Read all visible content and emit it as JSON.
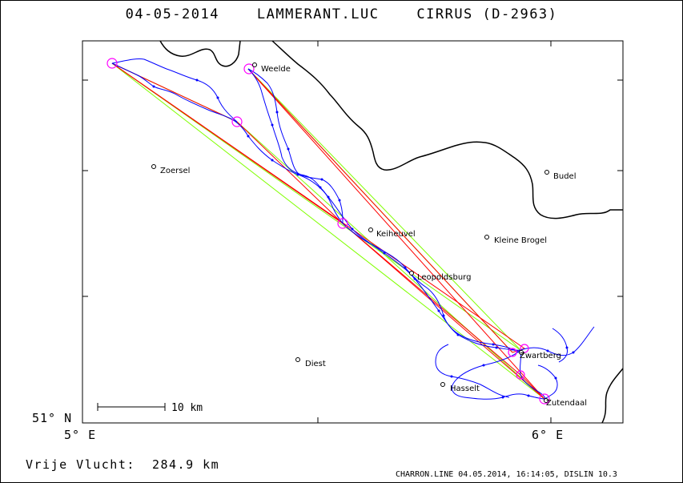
{
  "header": {
    "title": "04-05-2014    LAMMERANT.LUC    CIRRUS (D-2963)"
  },
  "axes": {
    "lat_label": "51° N",
    "lon_left": "5° E",
    "lon_right": "6° E"
  },
  "map": {
    "scale_label": "10 km",
    "places": [
      {
        "id": "weelde",
        "name": "Weelde"
      },
      {
        "id": "zoersel",
        "name": "Zoersel"
      },
      {
        "id": "budel",
        "name": "Budel"
      },
      {
        "id": "keiheuvel",
        "name": "Keiheuvel"
      },
      {
        "id": "kleine-brogel",
        "name": "Kleine Brogel"
      },
      {
        "id": "leopoldsburg",
        "name": "Leopoldsburg"
      },
      {
        "id": "diest",
        "name": "Diest"
      },
      {
        "id": "zwartberg",
        "name": "Zwartberg"
      },
      {
        "id": "hasselt",
        "name": "Hasselt"
      },
      {
        "id": "zutendaal",
        "name": "Zutendaal"
      }
    ],
    "colors": {
      "track": "#0000ff",
      "task_line": "#ff0000",
      "alt_line": "#80ff00",
      "turnpoint": "#ff00ff",
      "border": "#000000"
    }
  },
  "footer": {
    "distance_label": "Vrije Vlucht:  284.9 km",
    "software": "CHARRON.LINE 04.05.2014, 16:14:05, DISLIN 10.3"
  }
}
